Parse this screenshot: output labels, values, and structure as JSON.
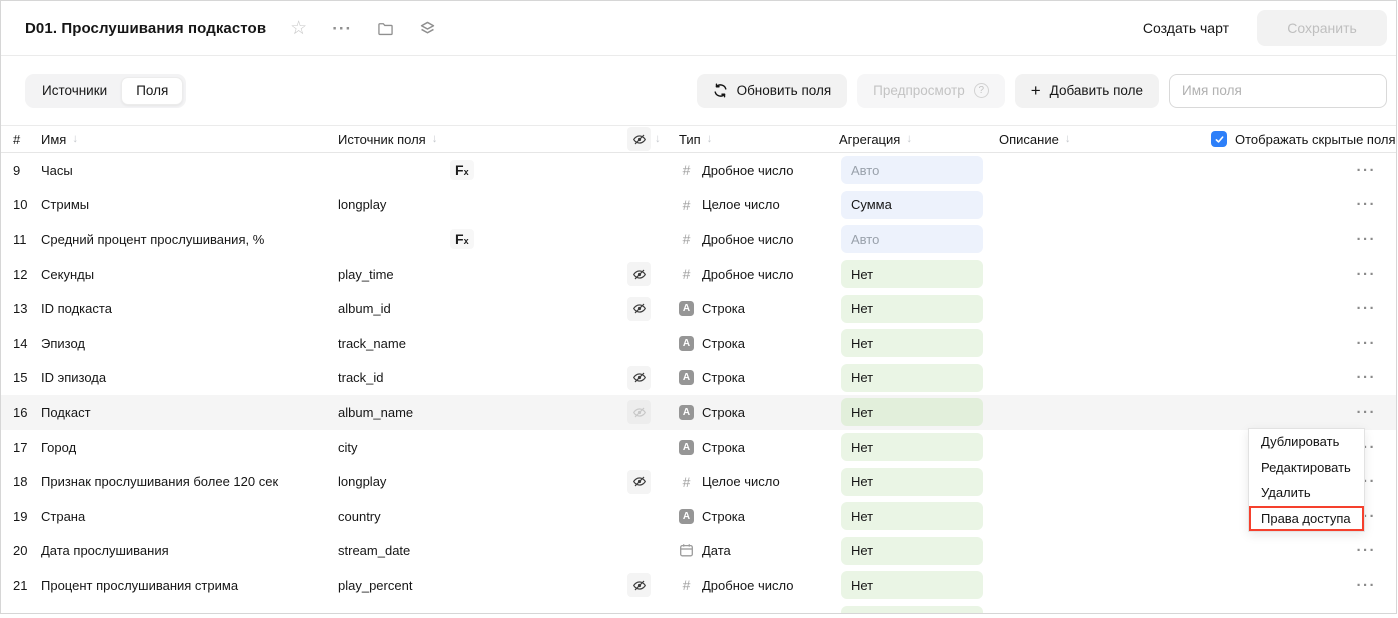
{
  "header": {
    "title": "D01. Прослушивания подкастов",
    "create_chart_label": "Создать чарт",
    "save_label": "Сохранить"
  },
  "toolbar": {
    "tabs": [
      {
        "label": "Источники",
        "active": false
      },
      {
        "label": "Поля",
        "active": true
      }
    ],
    "refresh_label": "Обновить поля",
    "preview_label": "Предпросмотр",
    "add_field_label": "Добавить поле",
    "field_name_placeholder": "Имя поля"
  },
  "table": {
    "columns": {
      "num": "#",
      "name": "Имя",
      "source": "Источник поля",
      "type": "Тип",
      "aggregation": "Агрегация",
      "description": "Описание"
    },
    "show_hidden": {
      "label": "Отображать скрытые поля",
      "checked": true
    },
    "rows": [
      {
        "num": "9",
        "name": "Часы",
        "source": "",
        "formula": true,
        "hidden": "none",
        "type_kind": "number",
        "type_label": "Дробное число",
        "aggregation": "Авто",
        "agg_color": "blue",
        "agg_muted": true,
        "description": "",
        "highlighted": false,
        "partial": false
      },
      {
        "num": "10",
        "name": "Стримы",
        "source": "longplay",
        "formula": false,
        "hidden": "none",
        "type_kind": "number",
        "type_label": "Целое число",
        "aggregation": "Сумма",
        "agg_color": "blue",
        "agg_muted": false,
        "description": "",
        "highlighted": false,
        "partial": false
      },
      {
        "num": "11",
        "name": "Средний процент прослушивания, %",
        "source": "",
        "formula": true,
        "hidden": "none",
        "type_kind": "number",
        "type_label": "Дробное число",
        "aggregation": "Авто",
        "agg_color": "blue",
        "agg_muted": true,
        "description": "",
        "highlighted": false,
        "partial": false
      },
      {
        "num": "12",
        "name": "Секунды",
        "source": "play_time",
        "formula": false,
        "hidden": "dark",
        "type_kind": "number",
        "type_label": "Дробное число",
        "aggregation": "Нет",
        "agg_color": "green",
        "agg_muted": false,
        "description": "",
        "highlighted": false,
        "partial": false
      },
      {
        "num": "13",
        "name": "ID подкаста",
        "source": "album_id",
        "formula": false,
        "hidden": "dark",
        "type_kind": "string",
        "type_label": "Строка",
        "aggregation": "Нет",
        "agg_color": "green",
        "agg_muted": false,
        "description": "",
        "highlighted": false,
        "partial": false
      },
      {
        "num": "14",
        "name": "Эпизод",
        "source": "track_name",
        "formula": false,
        "hidden": "none",
        "type_kind": "string",
        "type_label": "Строка",
        "aggregation": "Нет",
        "agg_color": "green",
        "agg_muted": false,
        "description": "",
        "highlighted": false,
        "partial": false
      },
      {
        "num": "15",
        "name": "ID эпизода",
        "source": "track_id",
        "formula": false,
        "hidden": "dark",
        "type_kind": "string",
        "type_label": "Строка",
        "aggregation": "Нет",
        "agg_color": "green",
        "agg_muted": false,
        "description": "",
        "highlighted": false,
        "partial": false
      },
      {
        "num": "16",
        "name": "Подкаст",
        "source": "album_name",
        "formula": false,
        "hidden": "muted",
        "type_kind": "string",
        "type_label": "Строка",
        "aggregation": "Нет",
        "agg_color": "green",
        "agg_muted": false,
        "description": "",
        "highlighted": true,
        "partial": false
      },
      {
        "num": "17",
        "name": "Город",
        "source": "city",
        "formula": false,
        "hidden": "none",
        "type_kind": "string",
        "type_label": "Строка",
        "aggregation": "Нет",
        "agg_color": "green",
        "agg_muted": false,
        "description": "",
        "highlighted": false,
        "partial": false
      },
      {
        "num": "18",
        "name": "Признак прослушивания более 120 сек",
        "source": "longplay",
        "formula": false,
        "hidden": "dark",
        "type_kind": "number",
        "type_label": "Целое число",
        "aggregation": "Нет",
        "agg_color": "green",
        "agg_muted": false,
        "description": "",
        "highlighted": false,
        "partial": false
      },
      {
        "num": "19",
        "name": "Страна",
        "source": "country",
        "formula": false,
        "hidden": "none",
        "type_kind": "string",
        "type_label": "Строка",
        "aggregation": "Нет",
        "agg_color": "green",
        "agg_muted": false,
        "description": "",
        "highlighted": false,
        "partial": false
      },
      {
        "num": "20",
        "name": "Дата прослушивания",
        "source": "stream_date",
        "formula": false,
        "hidden": "none",
        "type_kind": "date",
        "type_label": "Дата",
        "aggregation": "Нет",
        "agg_color": "green",
        "agg_muted": false,
        "description": "",
        "highlighted": false,
        "partial": false
      },
      {
        "num": "21",
        "name": "Процент прослушивания стрима",
        "source": "play_percent",
        "formula": false,
        "hidden": "dark",
        "type_kind": "number",
        "type_label": "Дробное число",
        "aggregation": "Нет",
        "agg_color": "green",
        "agg_muted": false,
        "description": "",
        "highlighted": false,
        "partial": false
      },
      {
        "num": "",
        "name": "",
        "source": "",
        "formula": false,
        "hidden": "none",
        "type_kind": "",
        "type_label": "",
        "aggregation": "",
        "agg_color": "green",
        "agg_muted": false,
        "description": "",
        "highlighted": false,
        "partial": true
      }
    ]
  },
  "context_menu": {
    "items": [
      "Дублировать",
      "Редактировать",
      "Удалить",
      "Права доступа"
    ],
    "highlighted_item": "Права доступа"
  },
  "colors": {
    "checkbox_blue": "#2d7ff9",
    "menu_highlight_red": "#f5402d",
    "agg_blue_bg": "#edf2fc",
    "agg_green_bg": "#eaf5e5",
    "row_hover_bg": "#f5f5f5"
  }
}
